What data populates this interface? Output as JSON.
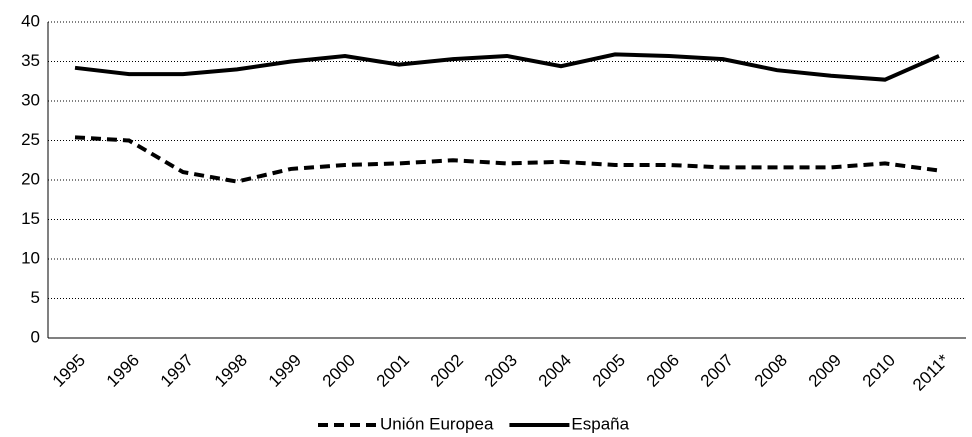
{
  "chart_data": {
    "type": "line",
    "categories": [
      "1995",
      "1996",
      "1997",
      "1998",
      "1999",
      "2000",
      "2001",
      "2002",
      "2003",
      "2004",
      "2005",
      "2006",
      "2007",
      "2008",
      "2009",
      "2010",
      "2011*"
    ],
    "series": [
      {
        "name": "Unión Europea",
        "color": "#000000",
        "style": "dashed",
        "values": [
          25.4,
          25,
          21,
          19.8,
          21.4,
          21.9,
          22.1,
          22.5,
          22.1,
          22.3,
          21.9,
          21.9,
          21.6,
          21.6,
          21.6,
          22.1,
          21.2
        ]
      },
      {
        "name": "España",
        "color": "#000000",
        "style": "solid",
        "values": [
          34.2,
          33.4,
          33.4,
          34,
          35,
          35.7,
          34.6,
          35.3,
          35.7,
          34.4,
          35.9,
          35.7,
          35.3,
          33.9,
          33.2,
          32.7,
          35.7
        ]
      }
    ],
    "ylim": [
      0,
      40
    ],
    "yticks": [
      0,
      5,
      10,
      15,
      20,
      25,
      30,
      35,
      40
    ],
    "grid": true,
    "legend": "bottom"
  }
}
